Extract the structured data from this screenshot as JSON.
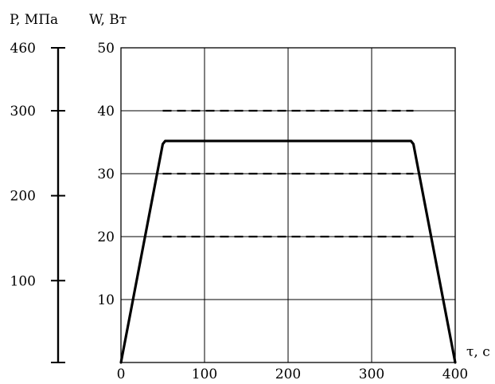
{
  "chart_data": {
    "type": "line",
    "title": "",
    "grid": true,
    "x_axis": {
      "label": "τ, с",
      "range": [
        0,
        400
      ],
      "ticks": [
        0,
        100,
        200,
        300,
        400
      ]
    },
    "y_axis_right": {
      "label": "W, Вт",
      "range": [
        0,
        50
      ],
      "ticks": [
        10,
        20,
        30,
        40,
        50
      ]
    },
    "y_axis_left": {
      "label": "P, МПа",
      "ticks": [
        {
          "label": "460",
          "align_w": 50
        },
        {
          "label": "300",
          "align_w": 40
        },
        {
          "label": "200",
          "align_w": 26.5
        },
        {
          "label": "100",
          "align_w": 13
        }
      ]
    },
    "series": [
      {
        "style": "solid",
        "x": [
          0,
          50,
          53,
          347,
          350,
          400
        ],
        "y": [
          0,
          34.7,
          35.2,
          35.2,
          34.7,
          0
        ]
      }
    ],
    "reference_lines": [
      {
        "style": "dashed",
        "y": 40,
        "x_start": 50,
        "x_end": 350
      },
      {
        "style": "dashed",
        "y": 30,
        "x_start": 50,
        "x_end": 350
      },
      {
        "style": "dashed",
        "y": 20,
        "x_start": 50,
        "x_end": 350
      }
    ]
  }
}
